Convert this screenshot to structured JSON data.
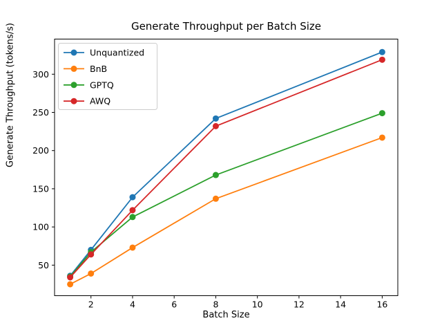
{
  "figure": {
    "background": "#ffffff",
    "axes_edge_color": "#000000",
    "legend_border_color": "#cccccc"
  },
  "chart_data": {
    "type": "line",
    "title": "Generate Throughput per Batch Size",
    "xlabel": "Batch Size",
    "ylabel": "Generate Throughput (tokens/s)",
    "x": [
      1,
      2,
      4,
      8,
      16
    ],
    "series": [
      {
        "name": "Unquantized",
        "color": "#1f77b4",
        "values": [
          36,
          70,
          139,
          242,
          329
        ]
      },
      {
        "name": "BnB",
        "color": "#ff7f0e",
        "values": [
          25,
          39,
          73,
          137,
          217
        ]
      },
      {
        "name": "GPTQ",
        "color": "#2ca02c",
        "values": [
          35,
          67,
          113,
          168,
          249
        ]
      },
      {
        "name": "AWQ",
        "color": "#d62728",
        "values": [
          34,
          64,
          122,
          232,
          319
        ]
      }
    ],
    "xticks": [
      2,
      4,
      6,
      8,
      10,
      12,
      14,
      16
    ],
    "yticks": [
      50,
      100,
      150,
      200,
      250,
      300
    ],
    "xlim": [
      0.25,
      16.75
    ],
    "ylim": [
      10,
      346
    ],
    "grid": false,
    "legend_position": "upper-left",
    "marker": "circle",
    "line_width": 1.8,
    "marker_radius": 4.5
  }
}
